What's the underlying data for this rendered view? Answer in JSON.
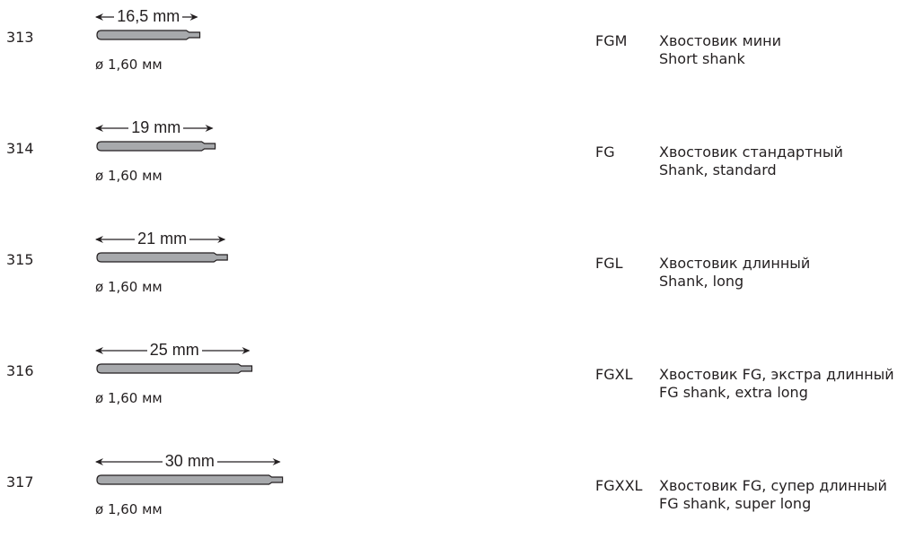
{
  "rows": [
    {
      "code": "313",
      "length_label": "16,5 mm",
      "length_mm": 16.5,
      "diameter": "ø 1,60 мм",
      "type": "FGM",
      "title_ru": "Хвостовик мини",
      "title_en": "Short shank"
    },
    {
      "code": "314",
      "length_label": "19 mm",
      "length_mm": 19,
      "diameter": "ø 1,60 мм",
      "type": "FG",
      "title_ru": "Хвостовик стандартный",
      "title_en": "Shank, standard"
    },
    {
      "code": "315",
      "length_label": "21 mm",
      "length_mm": 21,
      "diameter": "ø 1,60 мм",
      "type": "FGL",
      "title_ru": "Хвостовик длинный",
      "title_en": "Shank, long"
    },
    {
      "code": "316",
      "length_label": "25 mm",
      "length_mm": 25,
      "diameter": "ø 1,60 мм",
      "type": "FGXL",
      "title_ru": "Хвостовик FG, экстра длинный",
      "title_en": "FG shank, extra long"
    },
    {
      "code": "317",
      "length_label": "30 mm",
      "length_mm": 30,
      "diameter": "ø 1,60 мм",
      "type": "FGXXL",
      "title_ru": "Хвостовик FG, супер длинный",
      "title_en": "FG shank, super long"
    }
  ],
  "colors": {
    "shank_fill": "#a7a9ac",
    "outline": "#231f20",
    "text": "#231f20"
  }
}
